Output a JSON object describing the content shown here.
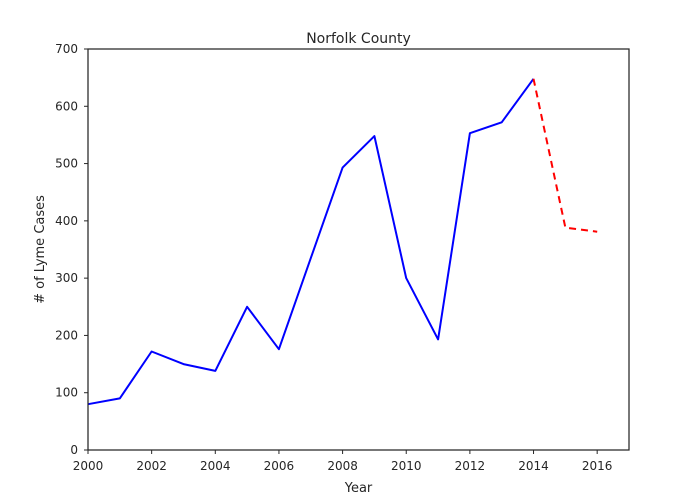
{
  "chart_data": {
    "type": "line",
    "title": "Norfolk County",
    "xlabel": "Year",
    "ylabel": "# of Lyme Cases",
    "xlim": [
      2000,
      2017
    ],
    "ylim": [
      0,
      700
    ],
    "xticks": [
      2000,
      2002,
      2004,
      2006,
      2008,
      2010,
      2012,
      2014,
      2016
    ],
    "yticks": [
      0,
      100,
      200,
      300,
      400,
      500,
      600,
      700
    ],
    "grid": false,
    "series": [
      {
        "style": "solid",
        "color": "#0000ff",
        "x": [
          2000,
          2001,
          2002,
          2003,
          2004,
          2005,
          2006,
          2007,
          2008,
          2009,
          2010,
          2011,
          2012,
          2013,
          2014
        ],
        "values": [
          80,
          90,
          172,
          150,
          138,
          250,
          176,
          335,
          493,
          548,
          300,
          193,
          553,
          572,
          648
        ]
      },
      {
        "style": "dashed",
        "color": "#ff0000",
        "x": [
          2014,
          2015,
          2016
        ],
        "values": [
          648,
          388,
          381
        ]
      }
    ]
  }
}
